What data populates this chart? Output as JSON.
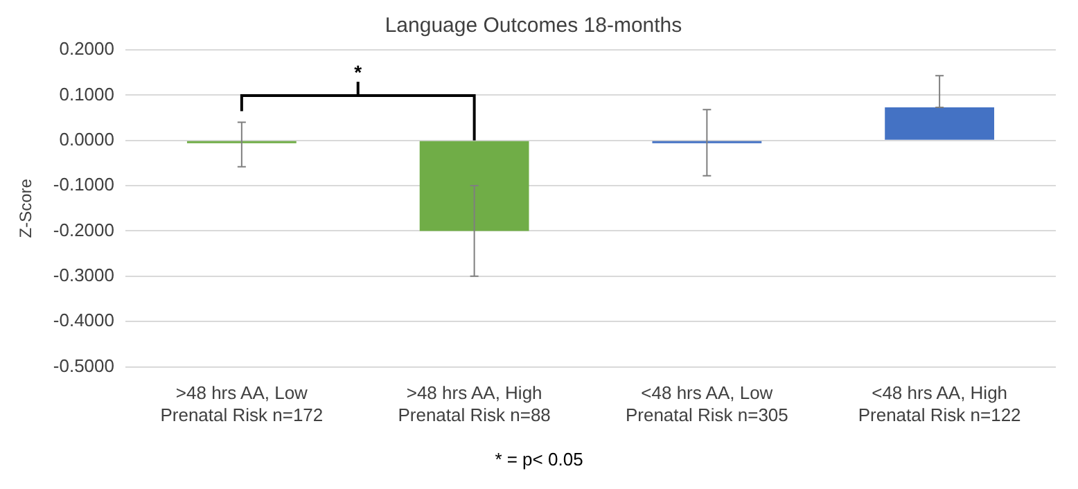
{
  "chart_data": {
    "type": "bar",
    "title": "Language Outcomes 18-months",
    "ylabel": "Z-Score",
    "categories": [
      ">48 hrs AA, Low Prenatal Risk n=172",
      ">48 hrs AA, High Prenatal Risk n=88",
      "<48 hrs AA, Low Prenatal Risk n=305",
      "<48 hrs AA, High Prenatal Risk n=122"
    ],
    "values": [
      -0.005,
      -0.2,
      -0.003,
      0.073
    ],
    "colors": [
      "#70ad47",
      "#70ad47",
      "#4472c4",
      "#4472c4"
    ],
    "errors": [
      [
        -0.058,
        0.04
      ],
      [
        -0.3,
        -0.1
      ],
      [
        -0.078,
        0.068
      ],
      [
        0.073,
        0.143
      ]
    ],
    "ylim": [
      -0.5,
      0.2
    ],
    "yticks": [
      {
        "value": 0.2,
        "label": "0.2000"
      },
      {
        "value": 0.1,
        "label": "0.1000"
      },
      {
        "value": 0,
        "label": "0.0000"
      },
      {
        "value": -0.1,
        "label": "-0.1000"
      },
      {
        "value": -0.2,
        "label": "-0.2000"
      },
      {
        "value": -0.3,
        "label": "-0.3000"
      },
      {
        "value": -0.4,
        "label": "-0.4000"
      },
      {
        "value": -0.5,
        "label": "-0.5000"
      }
    ],
    "grid": "y",
    "legend": false,
    "annotations": [
      "*",
      "* = p< 0.05"
    ]
  }
}
